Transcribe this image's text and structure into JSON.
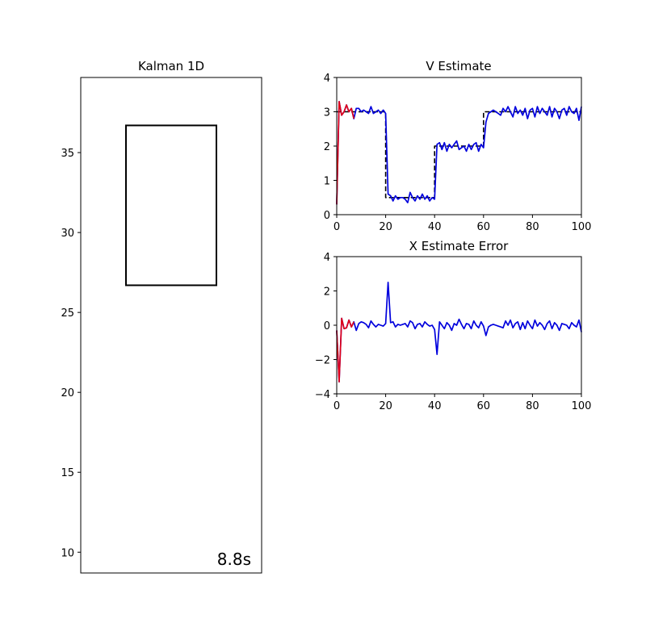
{
  "colors": {
    "estimate_early": "#e00018",
    "estimate": "#0000dd",
    "truth": "#000000",
    "axes": "#000000"
  },
  "chart_data": [
    {
      "type": "scatter",
      "title": "Kalman 1D",
      "xlabel": "",
      "ylabel": "",
      "ylim": [
        8.7,
        39.7
      ],
      "yticks": [
        10,
        15,
        20,
        25,
        30,
        35
      ],
      "xticks": [],
      "box": {
        "y_bottom": 26.7,
        "y_top": 36.7
      },
      "time_label": "8.8s",
      "grid": false
    },
    {
      "type": "line",
      "title": "V Estimate",
      "xlabel": "",
      "ylabel": "",
      "xlim": [
        0,
        100
      ],
      "ylim": [
        0,
        4
      ],
      "xticks": [
        0,
        20,
        40,
        60,
        80,
        100
      ],
      "yticks": [
        0,
        1,
        2,
        3,
        4
      ],
      "grid": false,
      "series": [
        {
          "style": "dashed",
          "color": "#000000",
          "x": [
            0,
            20,
            20,
            40,
            40,
            60,
            60,
            100
          ],
          "y": [
            3,
            3,
            0.5,
            0.5,
            2,
            2,
            3,
            3
          ]
        },
        {
          "style": "solid",
          "color": "#0000dd",
          "x": [
            0,
            1,
            2,
            3,
            4,
            5,
            6,
            7,
            8,
            9,
            10,
            11,
            12,
            13,
            14,
            15,
            16,
            17,
            18,
            19,
            20,
            21,
            22,
            23,
            24,
            25,
            26,
            27,
            28,
            29,
            30,
            31,
            32,
            33,
            34,
            35,
            36,
            37,
            38,
            39,
            40,
            41,
            42,
            43,
            44,
            45,
            46,
            47,
            48,
            49,
            50,
            51,
            52,
            53,
            54,
            55,
            56,
            57,
            58,
            59,
            60,
            61,
            62,
            63,
            64,
            65,
            66,
            67,
            68,
            69,
            70,
            71,
            72,
            73,
            74,
            75,
            76,
            77,
            78,
            79,
            80,
            81,
            82,
            83,
            84,
            85,
            86,
            87,
            88,
            89,
            90,
            91,
            92,
            93,
            94,
            95,
            96,
            97,
            98,
            99,
            100
          ],
          "y": [
            0.3,
            3.3,
            2.9,
            3.0,
            3.2,
            3.0,
            3.1,
            2.8,
            3.1,
            3.1,
            3.0,
            3.05,
            3.0,
            2.95,
            3.15,
            2.95,
            3.0,
            3.05,
            2.95,
            3.05,
            2.95,
            0.6,
            0.55,
            0.4,
            0.55,
            0.45,
            0.5,
            0.5,
            0.45,
            0.35,
            0.65,
            0.5,
            0.4,
            0.55,
            0.45,
            0.6,
            0.45,
            0.55,
            0.4,
            0.5,
            0.45,
            2.05,
            2.1,
            1.9,
            2.1,
            1.85,
            2.05,
            1.95,
            2.05,
            2.15,
            1.9,
            1.95,
            2.0,
            1.85,
            2.05,
            1.9,
            2.05,
            2.1,
            1.85,
            2.05,
            1.95,
            2.7,
            2.95,
            3.0,
            3.05,
            3.0,
            2.95,
            2.9,
            3.1,
            3.0,
            3.15,
            3.0,
            2.85,
            3.15,
            2.95,
            3.05,
            2.9,
            3.1,
            2.8,
            3.05,
            3.1,
            2.85,
            3.15,
            2.95,
            3.1,
            3.0,
            2.9,
            3.15,
            2.85,
            3.1,
            3.0,
            2.8,
            3.05,
            3.1,
            2.9,
            3.15,
            3.0,
            2.95,
            3.1,
            2.75,
            3.15
          ]
        },
        {
          "style": "solid",
          "color": "#e00018",
          "x": [
            0,
            1,
            2,
            3,
            4,
            5,
            6,
            7
          ],
          "y": [
            0.3,
            3.3,
            2.9,
            3.0,
            3.2,
            3.0,
            3.1,
            2.8
          ]
        }
      ]
    },
    {
      "type": "line",
      "title": "X Estimate Error",
      "xlabel": "",
      "ylabel": "",
      "xlim": [
        0,
        100
      ],
      "ylim": [
        -4,
        4
      ],
      "xticks": [
        0,
        20,
        40,
        60,
        80,
        100
      ],
      "yticks": [
        -4,
        -2,
        0,
        2,
        4
      ],
      "grid": false,
      "series": [
        {
          "style": "solid",
          "color": "#0000dd",
          "x": [
            0,
            1,
            2,
            3,
            4,
            5,
            6,
            7,
            8,
            9,
            10,
            11,
            12,
            13,
            14,
            15,
            16,
            17,
            18,
            19,
            20,
            21,
            22,
            23,
            24,
            25,
            26,
            27,
            28,
            29,
            30,
            31,
            32,
            33,
            34,
            35,
            36,
            37,
            38,
            39,
            40,
            41,
            42,
            43,
            44,
            45,
            46,
            47,
            48,
            49,
            50,
            51,
            52,
            53,
            54,
            55,
            56,
            57,
            58,
            59,
            60,
            61,
            62,
            63,
            64,
            65,
            66,
            67,
            68,
            69,
            70,
            71,
            72,
            73,
            74,
            75,
            76,
            77,
            78,
            79,
            80,
            81,
            82,
            83,
            84,
            85,
            86,
            87,
            88,
            89,
            90,
            91,
            92,
            93,
            94,
            95,
            96,
            97,
            98,
            99,
            100
          ],
          "y": [
            -0.3,
            -3.3,
            0.4,
            -0.2,
            -0.15,
            0.3,
            -0.1,
            0.2,
            -0.3,
            0.1,
            0.2,
            0.15,
            0.05,
            -0.15,
            0.25,
            0.05,
            -0.1,
            0.05,
            0.0,
            -0.05,
            0.1,
            2.5,
            0.15,
            0.2,
            -0.1,
            0.05,
            0.0,
            0.05,
            0.1,
            -0.1,
            0.25,
            0.15,
            -0.2,
            0.05,
            0.1,
            -0.1,
            0.2,
            0.05,
            -0.05,
            0.0,
            -0.25,
            -1.7,
            0.2,
            0.0,
            -0.2,
            0.15,
            0.0,
            -0.3,
            0.1,
            0.0,
            0.35,
            0.05,
            -0.2,
            0.1,
            0.05,
            -0.2,
            0.25,
            0.0,
            -0.15,
            0.2,
            -0.05,
            -0.6,
            -0.1,
            0.0,
            0.05,
            0.0,
            -0.05,
            -0.1,
            -0.15,
            0.25,
            0.0,
            0.3,
            -0.15,
            0.1,
            0.2,
            -0.25,
            0.15,
            -0.2,
            0.25,
            0.0,
            -0.2,
            0.3,
            -0.05,
            0.15,
            0.0,
            -0.25,
            0.1,
            0.25,
            -0.2,
            0.15,
            0.0,
            -0.3,
            0.1,
            0.05,
            0.0,
            -0.2,
            0.15,
            0.0,
            -0.1,
            0.3,
            -0.4
          ]
        },
        {
          "style": "solid",
          "color": "#e00018",
          "x": [
            0,
            1,
            2,
            3,
            4,
            5,
            6,
            7
          ],
          "y": [
            -0.3,
            -3.3,
            0.4,
            -0.2,
            -0.15,
            0.3,
            -0.1,
            0.2
          ]
        }
      ]
    }
  ]
}
